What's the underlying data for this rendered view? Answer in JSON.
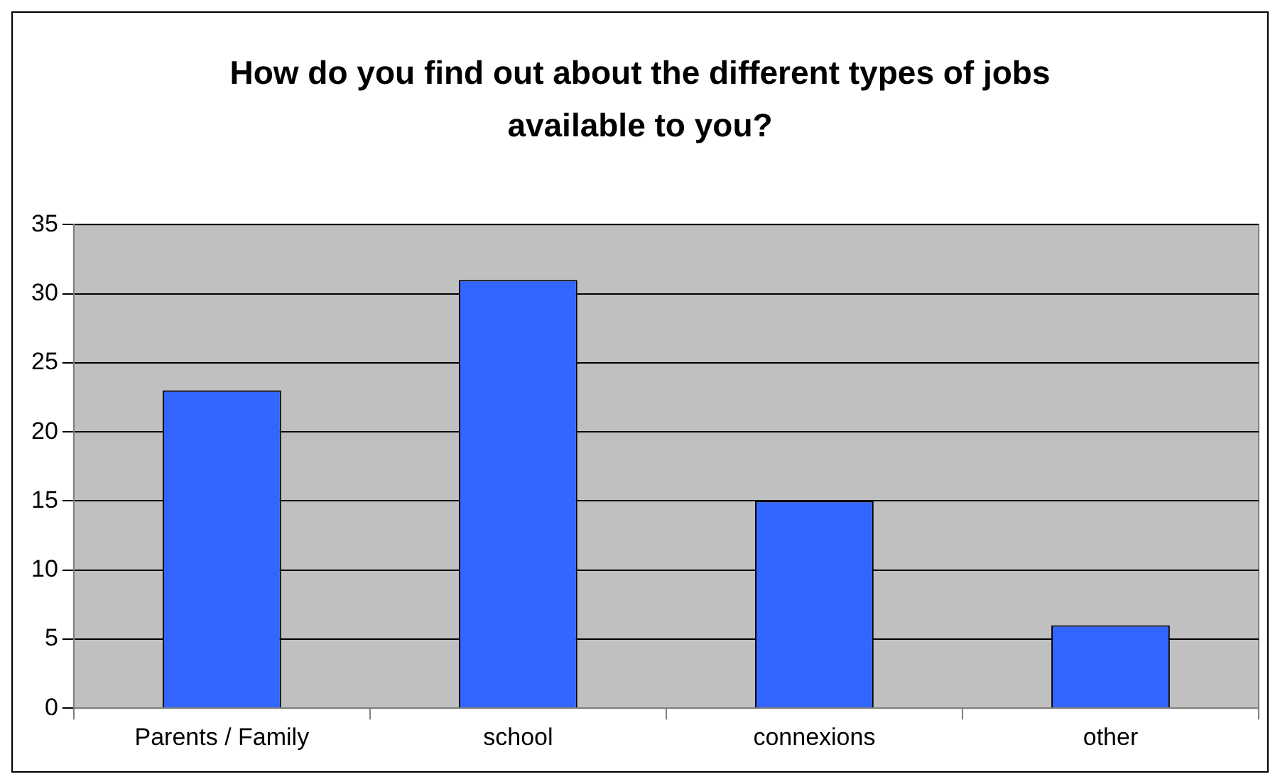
{
  "chart_data": {
    "type": "bar",
    "title": "How do you find out about the different types of jobs available to you?",
    "categories": [
      "Parents / Family",
      "school",
      "connexions",
      "other"
    ],
    "values": [
      23,
      31,
      15,
      6
    ],
    "color": "#3366ff",
    "ylim": [
      0,
      35
    ],
    "yticks": [
      0,
      5,
      10,
      15,
      20,
      25,
      30,
      35
    ],
    "grid": "y"
  }
}
